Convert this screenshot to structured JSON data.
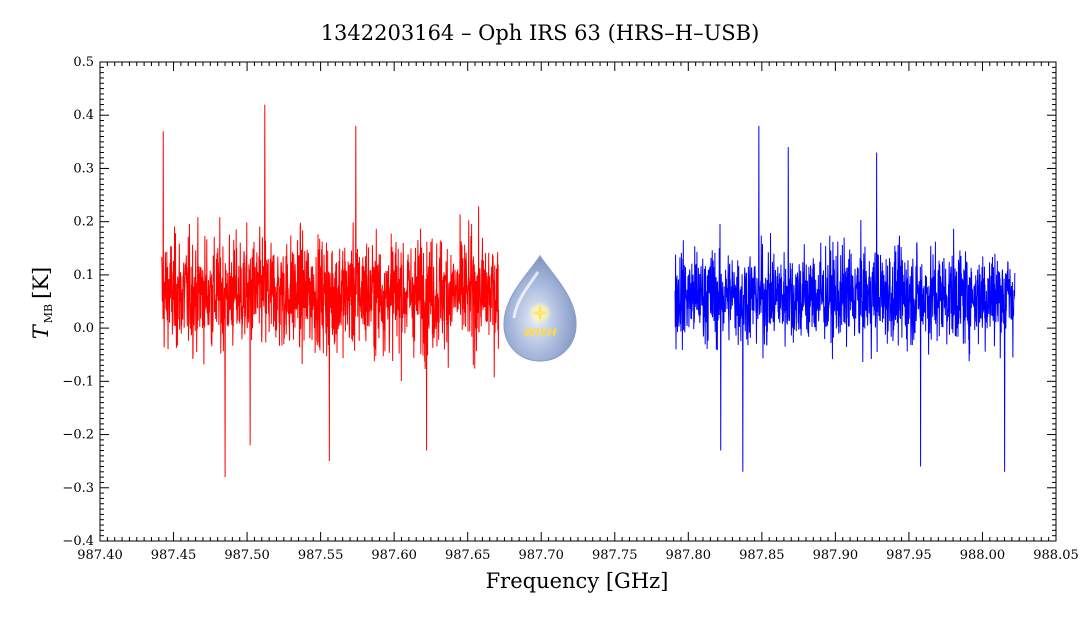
{
  "chart_data": {
    "type": "line",
    "title": "1342203164 – Oph IRS 63 (HRS–H–USB)",
    "xlabel": "Frequency [GHz]",
    "ylabel_main": "T",
    "ylabel_sub": "MB",
    "ylabel_unit": "[K]",
    "xlim": [
      987.4,
      988.05
    ],
    "ylim": [
      -0.4,
      0.5
    ],
    "x_ticks": [
      "987.40",
      "987.45",
      "987.50",
      "987.55",
      "987.60",
      "987.65",
      "987.70",
      "987.75",
      "987.80",
      "987.85",
      "987.90",
      "987.95",
      "988.00",
      "988.05"
    ],
    "y_ticks": [
      "0.5",
      "0.4",
      "0.3",
      "0.2",
      "0.1",
      "0.0",
      "−0.1",
      "−0.2",
      "−0.3",
      "−0.4"
    ],
    "grid": false,
    "series": [
      {
        "color": "#ff0000",
        "x_range": [
          987.442,
          987.671
        ],
        "typical_range": [
          -0.18,
          0.31
        ],
        "peaks": [
          {
            "x": 987.443,
            "y": 0.37
          },
          {
            "x": 987.512,
            "y": 0.42
          },
          {
            "x": 987.574,
            "y": 0.38
          },
          {
            "x": 987.485,
            "y": -0.28
          },
          {
            "x": 987.556,
            "y": -0.25
          },
          {
            "x": 987.622,
            "y": -0.23
          },
          {
            "x": 987.502,
            "y": -0.22
          }
        ]
      },
      {
        "color": "#0000ff",
        "x_range": [
          987.791,
          988.022
        ],
        "typical_range": [
          -0.15,
          0.27
        ],
        "peaks": [
          {
            "x": 987.848,
            "y": 0.38
          },
          {
            "x": 987.868,
            "y": 0.34
          },
          {
            "x": 987.928,
            "y": 0.33
          },
          {
            "x": 987.837,
            "y": -0.27
          },
          {
            "x": 987.958,
            "y": -0.26
          },
          {
            "x": 988.015,
            "y": -0.27
          },
          {
            "x": 987.822,
            "y": -0.23
          }
        ]
      }
    ]
  },
  "logo": {
    "text": "WISH",
    "color": "#9fb3d6"
  }
}
